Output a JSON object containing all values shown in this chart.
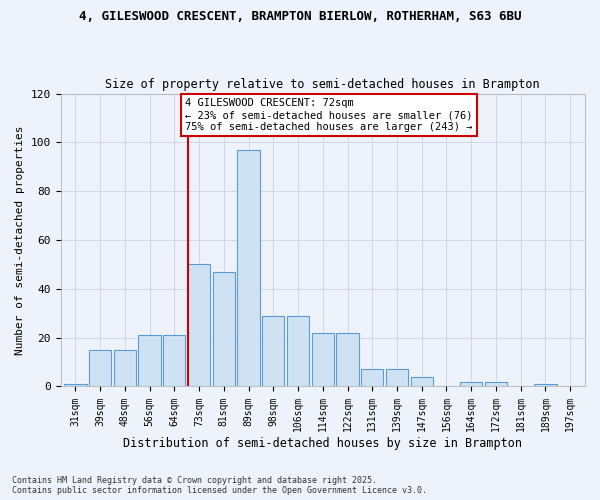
{
  "title": "4, GILESWOOD CRESCENT, BRAMPTON BIERLOW, ROTHERHAM, S63 6BU",
  "subtitle": "Size of property relative to semi-detached houses in Brampton",
  "xlabel": "Distribution of semi-detached houses by size in Brampton",
  "ylabel": "Number of semi-detached properties",
  "categories": [
    "31sqm",
    "39sqm",
    "48sqm",
    "56sqm",
    "64sqm",
    "73sqm",
    "81sqm",
    "89sqm",
    "98sqm",
    "106sqm",
    "114sqm",
    "122sqm",
    "131sqm",
    "139sqm",
    "147sqm",
    "156sqm",
    "164sqm",
    "172sqm",
    "181sqm",
    "189sqm",
    "197sqm"
  ],
  "bar_heights": [
    1,
    15,
    15,
    21,
    21,
    50,
    47,
    97,
    29,
    29,
    22,
    22,
    7,
    7,
    4,
    0,
    2,
    2,
    0,
    1,
    0
  ],
  "bar_color": "#cfe2f3",
  "bar_edge_color": "#5b9bd5",
  "vline_index": 5,
  "vline_color": "#cc0000",
  "annotation_box_color": "#cc0000",
  "property_label": "4 GILESWOOD CRESCENT: 72sqm",
  "pct_smaller": 23,
  "pct_larger": 75,
  "count_smaller": 76,
  "count_larger": 243,
  "ylim": [
    0,
    120
  ],
  "yticks": [
    0,
    20,
    40,
    60,
    80,
    100,
    120
  ],
  "background_color": "#eef2fa",
  "footer_line1": "Contains HM Land Registry data © Crown copyright and database right 2025.",
  "footer_line2": "Contains public sector information licensed under the Open Government Licence v3.0."
}
